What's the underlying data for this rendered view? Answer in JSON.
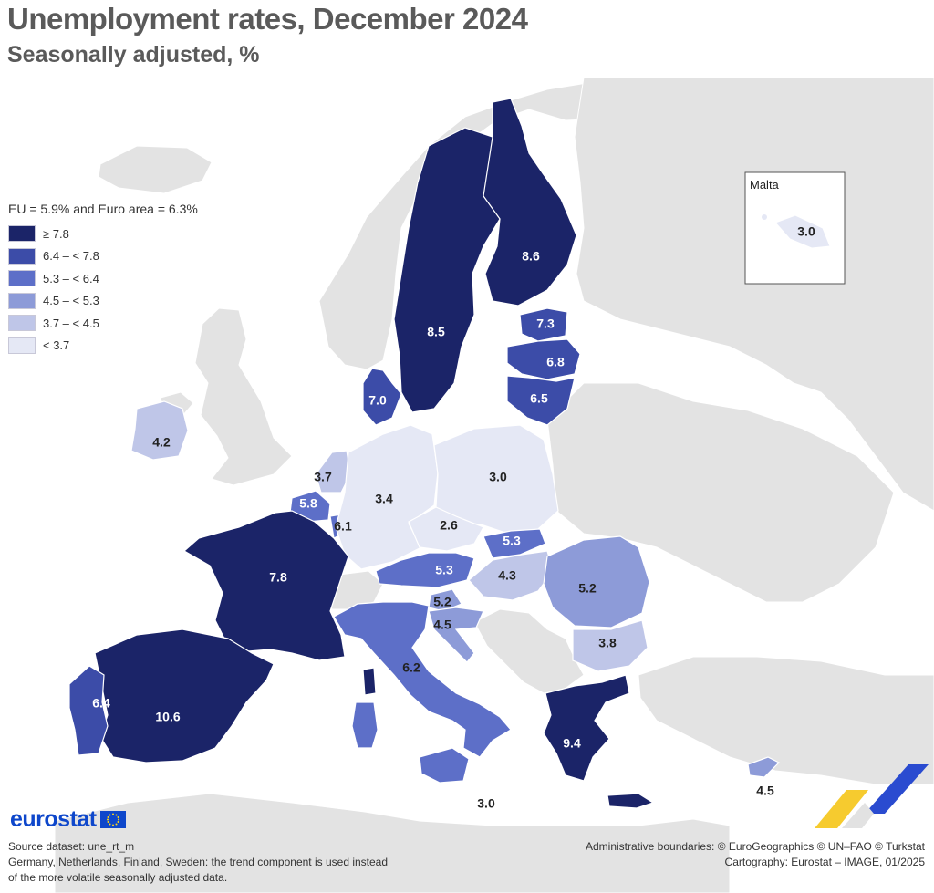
{
  "header": {
    "title": "Unemployment rates, December 2024",
    "subtitle": "Seasonally adjusted, %"
  },
  "legend": {
    "heading": "EU = 5.9% and Euro area = 6.3%",
    "classes": [
      {
        "label": "≥ 7.8",
        "color": "#1b2468"
      },
      {
        "label": "6.4 – < 7.8",
        "color": "#3c4ca8"
      },
      {
        "label": "5.3 – < 6.4",
        "color": "#5d6fc8"
      },
      {
        "label": "4.5 – < 5.3",
        "color": "#8d9bd8"
      },
      {
        "label": "3.7 – < 4.5",
        "color": "#bfc6e8"
      },
      {
        "label": "< 3.7",
        "color": "#e5e8f5"
      }
    ]
  },
  "colors": {
    "sea": "#ffffff",
    "non_eu_land": "#e3e3e3",
    "eurostat_blue": "#0e47cb"
  },
  "map_data": {
    "countries": [
      {
        "id": "finland",
        "value": "8.6",
        "class": 0
      },
      {
        "id": "sweden",
        "value": "8.5",
        "class": 0
      },
      {
        "id": "estonia",
        "value": "7.3",
        "class": 1
      },
      {
        "id": "latvia",
        "value": "6.8",
        "class": 1
      },
      {
        "id": "lithuania",
        "value": "6.5",
        "class": 1
      },
      {
        "id": "denmark",
        "value": "7.0",
        "class": 1
      },
      {
        "id": "ireland",
        "value": "4.2",
        "class": 4
      },
      {
        "id": "netherlands",
        "value": "3.7",
        "class": 4
      },
      {
        "id": "belgium",
        "value": "5.8",
        "class": 2
      },
      {
        "id": "luxembourg",
        "value": "6.1",
        "class": 2
      },
      {
        "id": "germany",
        "value": "3.4",
        "class": 5
      },
      {
        "id": "poland",
        "value": "3.0",
        "class": 5
      },
      {
        "id": "czechia",
        "value": "2.6",
        "class": 5
      },
      {
        "id": "slovakia",
        "value": "5.3",
        "class": 2
      },
      {
        "id": "austria",
        "value": "5.3",
        "class": 2
      },
      {
        "id": "hungary",
        "value": "4.3",
        "class": 4
      },
      {
        "id": "romania",
        "value": "5.2",
        "class": 3
      },
      {
        "id": "slovenia",
        "value": "5.2",
        "class": 3
      },
      {
        "id": "croatia",
        "value": "4.5",
        "class": 3
      },
      {
        "id": "bulgaria",
        "value": "3.8",
        "class": 4
      },
      {
        "id": "france",
        "value": "7.8",
        "class": 0
      },
      {
        "id": "italy",
        "value": "6.2",
        "class": 2
      },
      {
        "id": "spain",
        "value": "10.6",
        "class": 0
      },
      {
        "id": "portugal",
        "value": "6.4",
        "class": 1
      },
      {
        "id": "greece",
        "value": "9.4",
        "class": 0
      },
      {
        "id": "cyprus",
        "value": "4.5",
        "class": 3
      },
      {
        "id": "malta",
        "value": "3.0",
        "class": 5
      }
    ],
    "inset_title": "Malta"
  },
  "footer": {
    "logo_text": "eurostat",
    "source": "Source dataset: une_rt_m",
    "note_line1": "Germany, Netherlands, Finland, Sweden: the trend component is used instead",
    "note_line2": "of the more volatile seasonally adjusted data.",
    "boundaries": "Administrative boundaries: © EuroGeographics © UN–FAO © Turkstat",
    "cartography": "Cartography: Eurostat – IMAGE, 01/2025"
  }
}
